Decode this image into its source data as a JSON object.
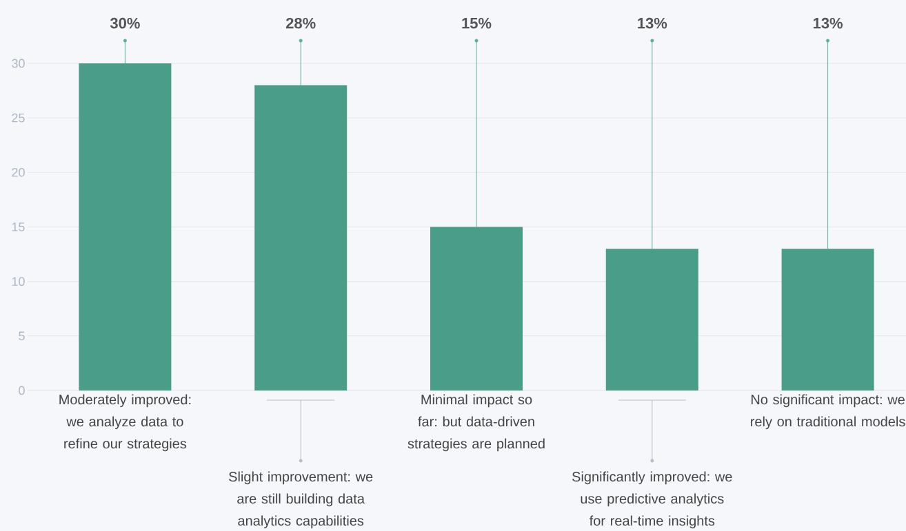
{
  "chart_data": {
    "type": "bar",
    "categories": [
      "Moderately improved: we analyze data to refine our strategies",
      "Slight improvement: we are still building data analytics capabilities",
      "Minimal impact so far: but data-driven strategies are planned",
      "Significantly improved: we use predictive analytics for real-time insights",
      "No significant impact: we rely on traditional models"
    ],
    "values": [
      30,
      28,
      15,
      13,
      13
    ],
    "value_labels": [
      "30%",
      "28%",
      "15%",
      "13%",
      "13%"
    ],
    "color": "#4a9d89",
    "ylim": [
      0,
      30
    ],
    "yticks": [
      0,
      5,
      10,
      15,
      20,
      25,
      30
    ],
    "grid": "y"
  }
}
